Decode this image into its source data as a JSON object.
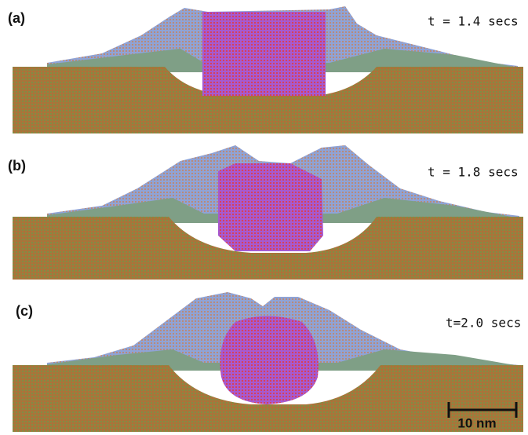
{
  "panels": [
    {
      "label": "(a)",
      "time": "t = 1.4 secs"
    },
    {
      "label": "(b)",
      "time": "t = 1.8 secs"
    },
    {
      "label": "(c)",
      "time": "t=2.0 secs"
    }
  ],
  "scale_bar": {
    "label": "10 nm"
  }
}
